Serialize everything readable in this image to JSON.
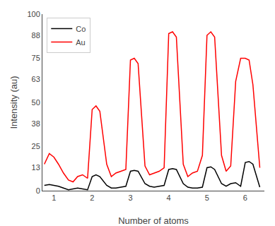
{
  "chart_data": {
    "type": "line",
    "xlabel": "Number of atoms",
    "ylabel": "Intensity (au)",
    "x": [
      0.75,
      0.88,
      1.0,
      1.12,
      1.25,
      1.38,
      1.5,
      1.62,
      1.75,
      1.88,
      2.0,
      2.1,
      2.2,
      2.38,
      2.5,
      2.62,
      2.75,
      2.88,
      3.0,
      3.1,
      3.2,
      3.38,
      3.5,
      3.62,
      3.75,
      3.88,
      4.0,
      4.1,
      4.2,
      4.38,
      4.5,
      4.62,
      4.75,
      4.88,
      5.0,
      5.1,
      5.2,
      5.38,
      5.5,
      5.62,
      5.75,
      5.88,
      6.0,
      6.1,
      6.2,
      6.38
    ],
    "series": [
      {
        "name": "Co",
        "color": "#000000",
        "values": [
          3,
          3.5,
          3,
          2.5,
          1.5,
          0.5,
          1,
          1.5,
          1.0,
          0.5,
          8,
          9,
          8,
          3,
          1.5,
          1.5,
          2,
          2.5,
          11,
          11.5,
          11,
          4,
          2.5,
          2,
          2.5,
          3,
          12,
          12.5,
          12,
          4,
          2,
          1.5,
          1.5,
          2,
          13,
          13.5,
          12,
          4,
          2.5,
          4,
          4.5,
          2.5,
          16,
          16.5,
          15,
          2
        ]
      },
      {
        "name": "Au",
        "color": "#ff0000",
        "values": [
          15,
          21,
          19,
          15,
          10,
          6,
          5,
          8,
          9,
          7,
          46,
          48,
          45,
          15,
          8,
          10,
          11,
          12,
          74,
          75,
          72,
          14,
          9,
          10,
          11,
          13,
          89,
          90,
          87,
          15,
          8,
          10,
          11,
          20,
          88,
          90,
          87,
          20,
          11,
          14,
          62,
          75,
          75,
          74,
          60,
          13
        ]
      }
    ],
    "xlim": [
      0.7,
      6.5
    ],
    "ylim": [
      0,
      100
    ],
    "xticks": [
      1,
      2,
      3,
      4,
      5,
      6
    ],
    "yticks": [
      0,
      13,
      25,
      38,
      50,
      63,
      75,
      88,
      100
    ],
    "grid": false,
    "legend": "upper left"
  }
}
